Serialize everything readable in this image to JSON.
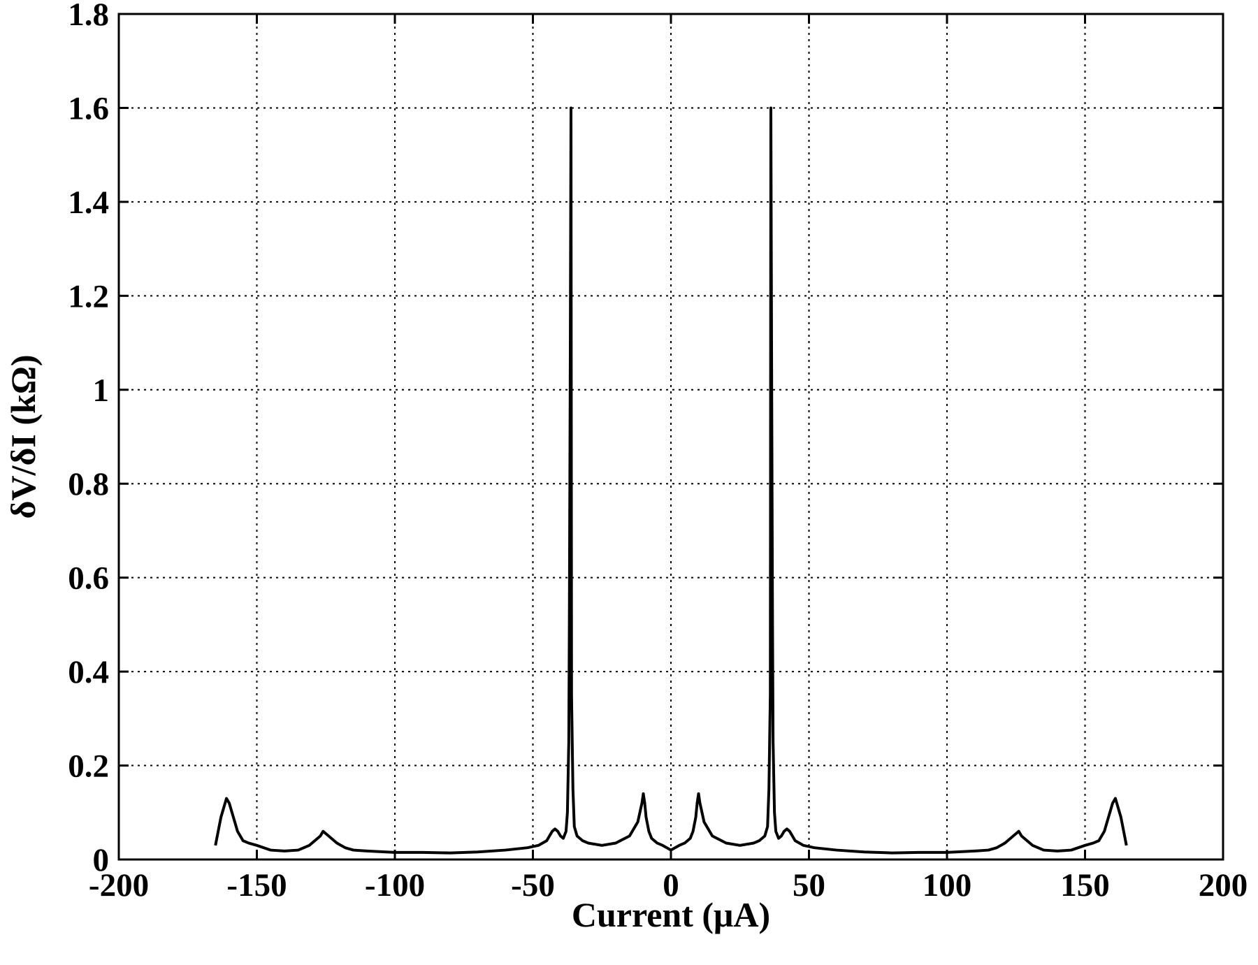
{
  "chart_data": {
    "type": "line",
    "title": "",
    "xlabel": "Current (μA)",
    "ylabel": "δV/δI (kΩ)",
    "xlim": [
      -200,
      200
    ],
    "ylim": [
      0,
      1.8
    ],
    "xticks": [
      -200,
      -150,
      -100,
      -50,
      0,
      50,
      100,
      150,
      200
    ],
    "xtick_labels": [
      "-200",
      "-150",
      "-100",
      "-50",
      "0",
      "50",
      "100",
      "150",
      "200"
    ],
    "yticks": [
      0,
      0.2,
      0.4,
      0.6,
      0.8,
      1.0,
      1.2,
      1.4,
      1.6,
      1.8
    ],
    "ytick_labels": [
      "0",
      "0.2",
      "0.4",
      "0.6",
      "0.8",
      "1",
      "1.2",
      "1.4",
      "1.6",
      "1.8"
    ],
    "grid": true,
    "grid_style": "dotted",
    "legend": false,
    "line_color": "#000000",
    "series": [
      {
        "x": [
          -165,
          -164,
          -163,
          -162,
          -161,
          -160,
          -159,
          -158,
          -157,
          -156,
          -155,
          -153,
          -150,
          -145,
          -140,
          -135,
          -131,
          -129,
          -127,
          -126,
          -125,
          -123,
          -121,
          -118,
          -115,
          -110,
          -100,
          -90,
          -80,
          -70,
          -60,
          -52,
          -48,
          -45,
          -43,
          -42,
          -41,
          -40,
          -39,
          -38,
          -37.5,
          -37,
          -36.8,
          -36.5,
          -36.2,
          -36,
          -35.5,
          -35,
          -34,
          -32,
          -30,
          -25,
          -20,
          -15,
          -12,
          -10.5,
          -10,
          -9.5,
          -9,
          -8,
          -7,
          -5,
          -3,
          0,
          3,
          5,
          7,
          8,
          9,
          9.5,
          10,
          10.5,
          12,
          15,
          20,
          25,
          30,
          32,
          34,
          35,
          35.5,
          36,
          36.2,
          36.5,
          36.8,
          37,
          37.5,
          38,
          39,
          40,
          41,
          42,
          43,
          45,
          48,
          52,
          60,
          70,
          80,
          90,
          100,
          110,
          115,
          118,
          121,
          123,
          125,
          126,
          127,
          129,
          131,
          135,
          140,
          145,
          150,
          153,
          155,
          156,
          157,
          158,
          159,
          160,
          161,
          162,
          163,
          164,
          165
        ],
        "y": [
          0.03,
          0.06,
          0.09,
          0.11,
          0.13,
          0.12,
          0.1,
          0.08,
          0.06,
          0.05,
          0.04,
          0.035,
          0.03,
          0.02,
          0.018,
          0.02,
          0.03,
          0.04,
          0.05,
          0.06,
          0.055,
          0.045,
          0.035,
          0.025,
          0.02,
          0.018,
          0.015,
          0.015,
          0.014,
          0.016,
          0.02,
          0.025,
          0.03,
          0.04,
          0.06,
          0.065,
          0.06,
          0.05,
          0.045,
          0.06,
          0.1,
          0.25,
          0.5,
          1.0,
          1.6,
          0.35,
          0.15,
          0.07,
          0.05,
          0.04,
          0.035,
          0.03,
          0.035,
          0.05,
          0.08,
          0.12,
          0.14,
          0.12,
          0.09,
          0.06,
          0.045,
          0.035,
          0.03,
          0.02,
          0.03,
          0.035,
          0.045,
          0.06,
          0.09,
          0.12,
          0.14,
          0.12,
          0.08,
          0.05,
          0.035,
          0.03,
          0.035,
          0.04,
          0.05,
          0.07,
          0.15,
          0.35,
          1.6,
          1.0,
          0.5,
          0.25,
          0.1,
          0.06,
          0.045,
          0.05,
          0.06,
          0.065,
          0.06,
          0.04,
          0.03,
          0.025,
          0.02,
          0.016,
          0.014,
          0.015,
          0.015,
          0.018,
          0.02,
          0.025,
          0.035,
          0.045,
          0.055,
          0.06,
          0.05,
          0.04,
          0.03,
          0.02,
          0.018,
          0.02,
          0.03,
          0.035,
          0.04,
          0.05,
          0.06,
          0.08,
          0.1,
          0.12,
          0.13,
          0.11,
          0.09,
          0.06,
          0.03
        ]
      }
    ]
  }
}
